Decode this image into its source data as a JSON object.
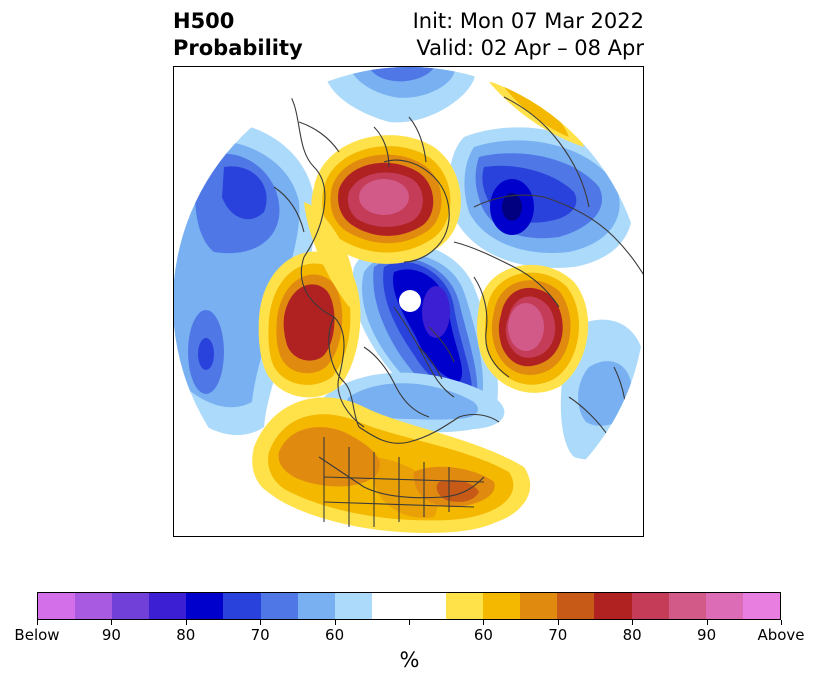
{
  "header": {
    "title_line1": "H500",
    "title_line2": "Probability",
    "init": "Init: Mon 07 Mar 2022",
    "valid": "Valid: 02 Apr – 08 Apr"
  },
  "colorbar": {
    "colors": [
      "#d36fe8",
      "#a85ae0",
      "#7040d8",
      "#3c1fd2",
      "#0000cc",
      "#2a42dc",
      "#4f78e6",
      "#78b0f2",
      "#acdafa",
      "#ffffff",
      "#ffffff",
      "#ffe24a",
      "#f4b800",
      "#e08a10",
      "#c85a18",
      "#b02222",
      "#c43c58",
      "#d25a88",
      "#dc6cb6",
      "#e87ee0"
    ],
    "tick_labels": [
      "Below",
      "90",
      "80",
      "70",
      "60",
      "",
      "60",
      "70",
      "80",
      "90",
      "Above"
    ],
    "unit": "%"
  }
}
